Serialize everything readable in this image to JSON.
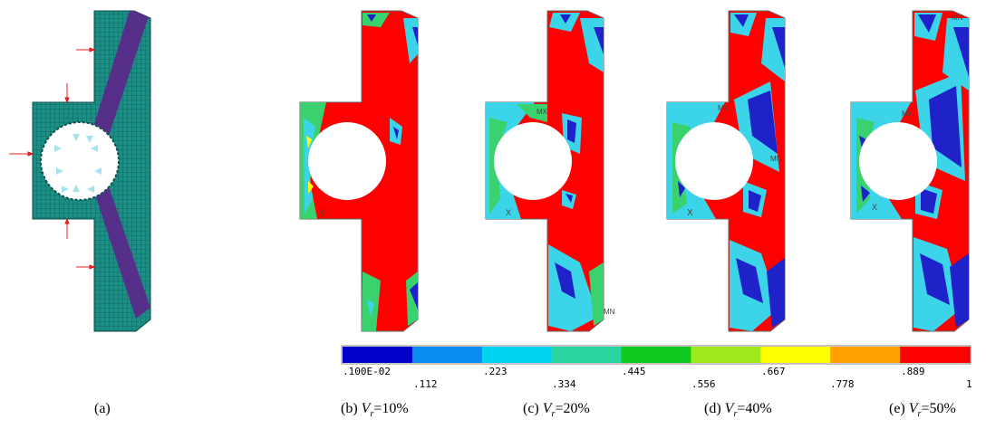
{
  "panels": [
    {
      "letter": "(a)",
      "label": "",
      "sub": "",
      "value": ""
    },
    {
      "letter": "(b)",
      "label": "V",
      "sub": "r",
      "value": "=10%"
    },
    {
      "letter": "(c)",
      "label": "V",
      "sub": "r",
      "value": "=20%"
    },
    {
      "letter": "(d)",
      "label": "V",
      "sub": "r",
      "value": "=40%"
    },
    {
      "letter": "(e)",
      "label": "V",
      "sub": "r",
      "value": "=50%"
    }
  ],
  "markers": {
    "b": [
      "X"
    ],
    "c": [
      "MX",
      "X",
      "MN"
    ],
    "d": [
      "MX",
      "MN",
      "X"
    ],
    "e": [
      "MX",
      "MN",
      "X"
    ]
  },
  "legend": {
    "colors": [
      "#0000c8",
      "#0a8cf0",
      "#00d4f0",
      "#2ad4a0",
      "#10c820",
      "#9ee81c",
      "#ffff00",
      "#ffa000",
      "#ff0000"
    ],
    "ticks_top": [
      ".100E-02",
      ".223",
      ".445",
      ".667",
      ".889"
    ],
    "ticks_bottom": [
      ".112",
      ".334",
      ".556",
      ".778",
      "1"
    ]
  },
  "palette": {
    "mesh": "#1b8f86",
    "mesh_lines": "#0d4f4a",
    "band": "#5a2a8a",
    "arrow": "#e02020",
    "hole_tri": "#9ee0ee",
    "red": "#ff0000",
    "blue": "#1e22c8",
    "cyan": "#3cd4e8",
    "green": "#3ad26e"
  }
}
